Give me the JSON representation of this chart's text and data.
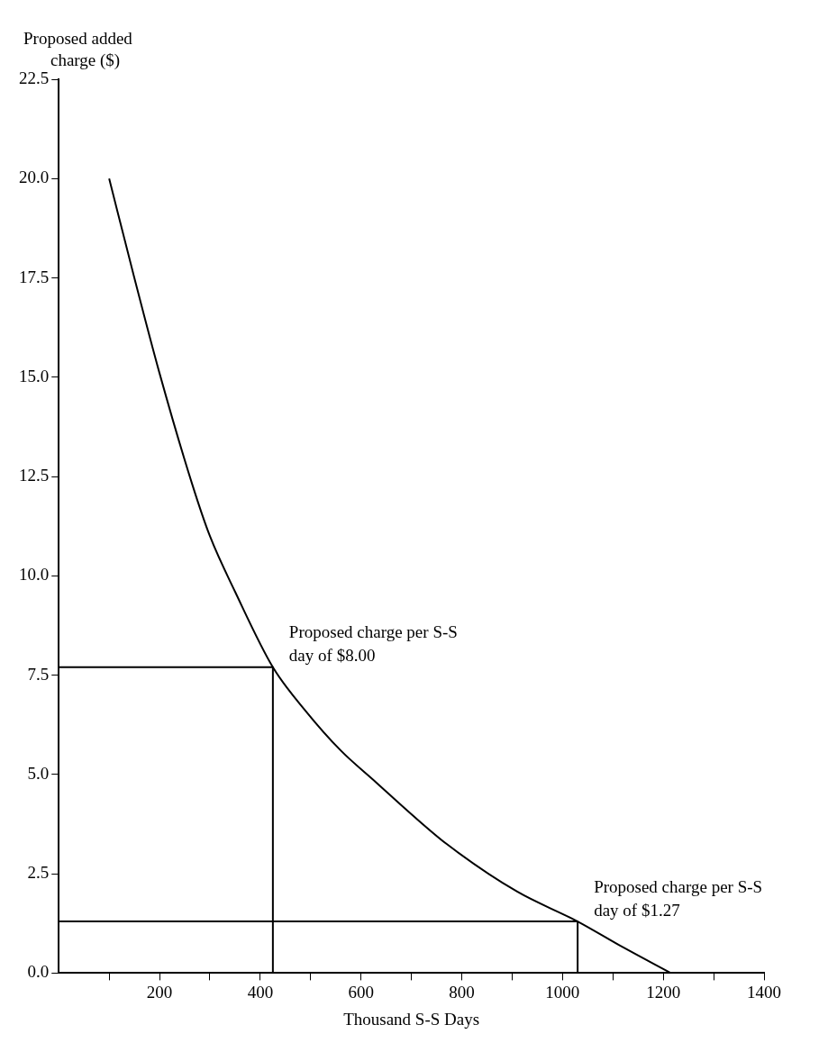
{
  "chart_data": {
    "type": "line",
    "xlabel": "Thousand S-S Days",
    "ylabel": "Proposed added charge ($)",
    "xlim": [
      0,
      1400
    ],
    "ylim": [
      0,
      22.5
    ],
    "xticks": [
      {
        "value": 100,
        "label": null
      },
      200,
      {
        "value": 300,
        "label": null
      },
      400,
      {
        "value": 500,
        "label": null
      },
      600,
      {
        "value": 700,
        "label": null
      },
      800,
      {
        "value": 900,
        "label": null
      },
      1000,
      {
        "value": 1100,
        "label": null
      },
      1200,
      {
        "value": 1300,
        "label": null
      },
      1400
    ],
    "yticks": [
      {
        "value": 0,
        "label": "0.0"
      },
      {
        "value": 2.5,
        "label": "2.5"
      },
      {
        "value": 5,
        "label": "5.0"
      },
      {
        "value": 7.5,
        "label": "7.5"
      },
      {
        "value": 10,
        "label": "10.0"
      },
      {
        "value": 12.5,
        "label": "12.5"
      },
      {
        "value": 15,
        "label": "15.0"
      },
      {
        "value": 17.5,
        "label": "17.5"
      },
      {
        "value": 20,
        "label": "20.0"
      },
      {
        "value": 22.5,
        "label": "22.5"
      }
    ],
    "grid": false,
    "legend": false,
    "marker": "none",
    "line_style": "solid",
    "series": [
      {
        "color": "#000000",
        "x": [
          100,
          150,
          200,
          265,
          300,
          350,
          425,
          490,
          560,
          630,
          700,
          770,
          910,
          1030,
          1120,
          1215
        ],
        "values": [
          20,
          17.5,
          15.1,
          12.3,
          11,
          9.6,
          7.7,
          6.6,
          5.6,
          4.8,
          4,
          3.25,
          2.05,
          1.3,
          0.65,
          0
        ]
      },
      {
        "color": "#000000",
        "x": [
          0,
          425,
          425
        ],
        "values": [
          7.7,
          7.7,
          0
        ]
      },
      {
        "color": "#000000",
        "x": [
          0,
          1030,
          1030
        ],
        "values": [
          1.3,
          1.3,
          0
        ]
      }
    ],
    "annotations": [
      {
        "text": "Proposed charge per S-S day of $8.00",
        "x": 425,
        "y": 7.7
      },
      {
        "text": "Proposed charge per S-S day of $1.27",
        "x": 1030,
        "y": 1.3
      }
    ]
  }
}
